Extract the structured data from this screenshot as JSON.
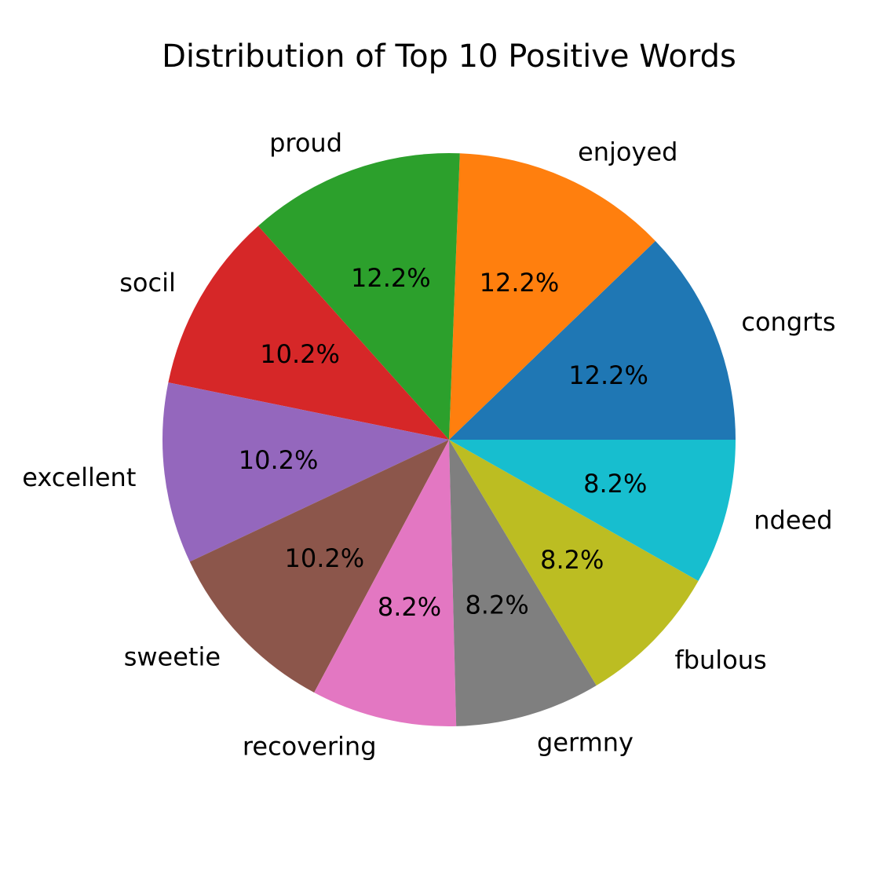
{
  "chart_data": {
    "type": "pie",
    "title": "Distribution of Top 10 Positive Words",
    "categories": [
      "congrts",
      "enjoyed",
      "proud",
      "socil",
      "excellent",
      "sweetie",
      "recovering",
      "germny",
      "fbulous",
      "ndeed"
    ],
    "values": [
      12.2,
      12.2,
      12.2,
      10.2,
      10.2,
      10.2,
      8.2,
      8.2,
      8.2,
      8.2
    ],
    "percent_labels": [
      "12.2%",
      "12.2%",
      "12.2%",
      "10.2%",
      "10.2%",
      "10.2%",
      "8.2%",
      "8.2%",
      "8.2%",
      "8.2%"
    ],
    "colors": [
      "#1f77b4",
      "#ff7f0e",
      "#2ca02c",
      "#d62728",
      "#9467bd",
      "#8c564b",
      "#e377c2",
      "#7f7f7f",
      "#bcbd22",
      "#17becf"
    ],
    "start_angle_deg": 0,
    "direction": "counterclockwise",
    "legend": "none"
  }
}
